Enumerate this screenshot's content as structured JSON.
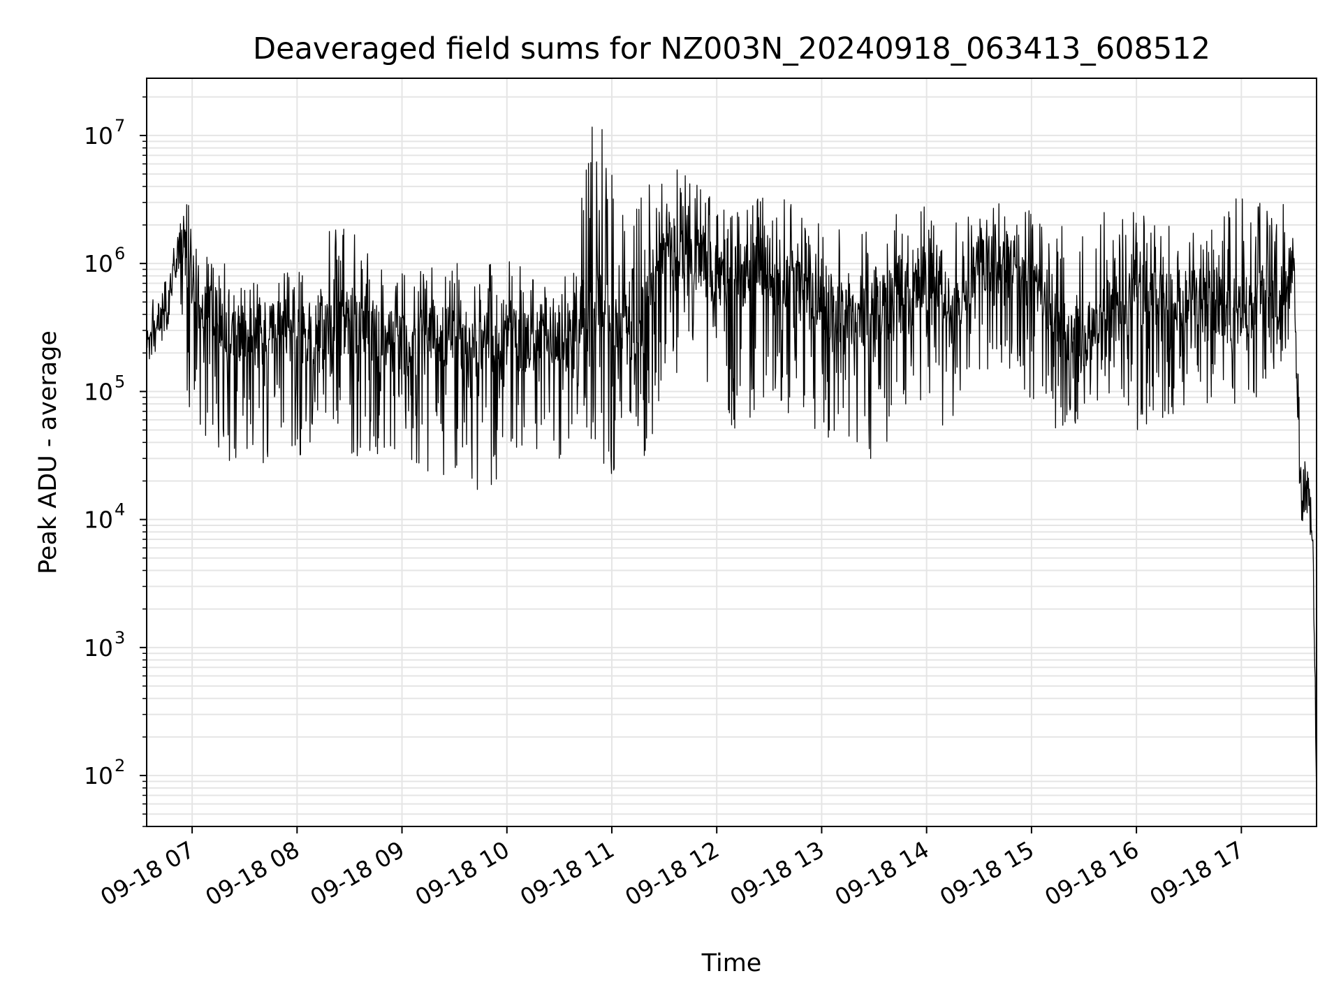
{
  "chart_data": {
    "type": "line",
    "title": "Deaveraged field sums for NZ003N_20240918_063413_608512",
    "xlabel": "Time",
    "ylabel": "Peak ADU - average",
    "yscale": "log",
    "ylim": [
      40,
      28000000
    ],
    "xlim": [
      "2024-09-18 06:34",
      "2024-09-18 17:43"
    ],
    "x_ticks": [
      {
        "time": "2024-09-18 07:00",
        "label": "09-18 07"
      },
      {
        "time": "2024-09-18 08:00",
        "label": "09-18 08"
      },
      {
        "time": "2024-09-18 09:00",
        "label": "09-18 09"
      },
      {
        "time": "2024-09-18 10:00",
        "label": "09-18 10"
      },
      {
        "time": "2024-09-18 11:00",
        "label": "09-18 11"
      },
      {
        "time": "2024-09-18 12:00",
        "label": "09-18 12"
      },
      {
        "time": "2024-09-18 13:00",
        "label": "09-18 13"
      },
      {
        "time": "2024-09-18 14:00",
        "label": "09-18 14"
      },
      {
        "time": "2024-09-18 15:00",
        "label": "09-18 15"
      },
      {
        "time": "2024-09-18 16:00",
        "label": "09-18 16"
      },
      {
        "time": "2024-09-18 17:00",
        "label": "09-18 17"
      }
    ],
    "y_ticks": [
      {
        "value": 100,
        "base": "10",
        "exp": "2"
      },
      {
        "value": 1000,
        "base": "10",
        "exp": "3"
      },
      {
        "value": 10000,
        "base": "10",
        "exp": "4"
      },
      {
        "value": 100000,
        "base": "10",
        "exp": "5"
      },
      {
        "value": 1000000,
        "base": "10",
        "exp": "6"
      },
      {
        "value": 10000000,
        "base": "10",
        "exp": "7"
      }
    ],
    "grid": true,
    "line_color": "#000000",
    "grid_color": "#e5e5e5",
    "series": [
      {
        "x": [
          "2024-09-18 06:34",
          "2024-09-18 06:40",
          "2024-09-18 06:46",
          "2024-09-18 06:52",
          "2024-09-18 06:56",
          "2024-09-18 07:05",
          "2024-09-18 07:20",
          "2024-09-18 07:35",
          "2024-09-18 07:50",
          "2024-09-18 08:05",
          "2024-09-18 08:20",
          "2024-09-18 08:35",
          "2024-09-18 08:50",
          "2024-09-18 09:05",
          "2024-09-18 09:20",
          "2024-09-18 09:35",
          "2024-09-18 09:50",
          "2024-09-18 10:05",
          "2024-09-18 10:20",
          "2024-09-18 10:35",
          "2024-09-18 10:50",
          "2024-09-18 11:00",
          "2024-09-18 11:15",
          "2024-09-18 11:30",
          "2024-09-18 11:45",
          "2024-09-18 12:00",
          "2024-09-18 12:15",
          "2024-09-18 12:30",
          "2024-09-18 12:45",
          "2024-09-18 13:00",
          "2024-09-18 13:15",
          "2024-09-18 13:30",
          "2024-09-18 13:45",
          "2024-09-18 14:00",
          "2024-09-18 14:15",
          "2024-09-18 14:30",
          "2024-09-18 14:45",
          "2024-09-18 15:00",
          "2024-09-18 15:15",
          "2024-09-18 15:30",
          "2024-09-18 15:45",
          "2024-09-18 16:00",
          "2024-09-18 16:15",
          "2024-09-18 16:30",
          "2024-09-18 16:45",
          "2024-09-18 17:00",
          "2024-09-18 17:15",
          "2024-09-18 17:25",
          "2024-09-18 17:30",
          "2024-09-18 17:34",
          "2024-09-18 17:38",
          "2024-09-18 17:41",
          "2024-09-18 17:43"
        ],
        "y": [
          250000,
          350000,
          450000,
          1400000,
          1200000,
          400000,
          350000,
          250000,
          300000,
          280000,
          320000,
          350000,
          250000,
          220000,
          280000,
          250000,
          230000,
          250000,
          250000,
          280000,
          600000,
          300000,
          300000,
          1500000,
          1200000,
          800000,
          800000,
          1000000,
          700000,
          500000,
          400000,
          400000,
          700000,
          800000,
          400000,
          1000000,
          1200000,
          800000,
          300000,
          250000,
          450000,
          500000,
          500000,
          500000,
          500000,
          450000,
          550000,
          600000,
          1000000,
          20000,
          15000,
          7000,
          70
        ],
        "min": [
          250000,
          300000,
          300000,
          1000000,
          60000,
          40000,
          30000,
          20000,
          35000,
          30000,
          30000,
          30000,
          30000,
          25000,
          20000,
          20000,
          15000,
          25000,
          30000,
          30000,
          40000,
          20000,
          20000,
          80000,
          250000,
          50000,
          50000,
          100000,
          50000,
          50000,
          30000,
          30000,
          50000,
          60000,
          45000,
          150000,
          150000,
          80000,
          50000,
          60000,
          80000,
          50000,
          60000,
          80000,
          80000,
          80000,
          100000,
          200000,
          400000,
          9000,
          9000,
          5000,
          60
        ],
        "max": [
          300000,
          400000,
          600000,
          1500000,
          3600000,
          1200000,
          1000000,
          700000,
          800000,
          1000000,
          1900000,
          1800000,
          900000,
          800000,
          1000000,
          1000000,
          1000000,
          1100000,
          700000,
          800000,
          15000000,
          10500000,
          3000000,
          9000000,
          5000000,
          3000000,
          2500000,
          4000000,
          3500000,
          2000000,
          1800000,
          2000000,
          2500000,
          3000000,
          2200000,
          2500000,
          3500000,
          2500000,
          2000000,
          2500000,
          2500000,
          2500000,
          2000000,
          2000000,
          1800000,
          4500000,
          3000000,
          3500000,
          3500000,
          80000,
          25000,
          10000,
          200
        ]
      }
    ]
  }
}
